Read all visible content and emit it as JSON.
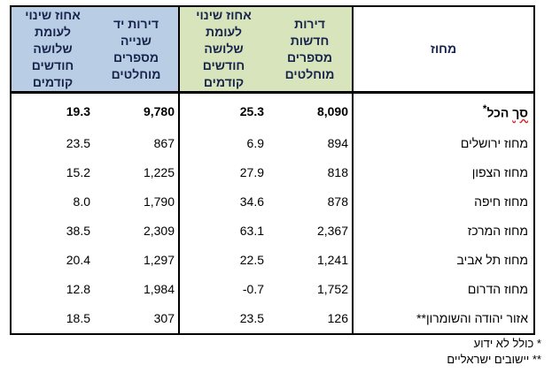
{
  "headers": {
    "district": "מחוז",
    "new_abs": [
      "דירות",
      "חדשות",
      "מספרים",
      "מוחלטים"
    ],
    "new_pct": [
      "אחוז שינוי",
      "לעומת",
      "שלושה",
      "חודשים",
      "קודמים"
    ],
    "used_abs": [
      "דירות יד",
      "שנייה",
      "מספרים",
      "מוחלטים"
    ],
    "used_pct": [
      "אחוז שינוי",
      "לעומת",
      "שלושה",
      "חודשים",
      "קודמים"
    ]
  },
  "total_row": {
    "district_word": "סך",
    "district_rest": " הכל",
    "district_star": "*",
    "new_abs": "8,090",
    "new_pct": "25.3",
    "used_abs": "9,780",
    "used_pct": "19.3"
  },
  "rows": [
    {
      "district": "מחוז ירושלים",
      "new_abs": "894",
      "new_pct": "6.9",
      "used_abs": "867",
      "used_pct": "23.5"
    },
    {
      "district": "מחוז הצפון",
      "new_abs": "818",
      "new_pct": "27.9",
      "used_abs": "1,225",
      "used_pct": "15.2"
    },
    {
      "district": "מחוז חיפה",
      "new_abs": "878",
      "new_pct": "34.6",
      "used_abs": "1,790",
      "used_pct": "8.0"
    },
    {
      "district": "מחוז המרכז",
      "new_abs": "2,367",
      "new_pct": "63.1",
      "used_abs": "2,309",
      "used_pct": "38.5"
    },
    {
      "district": "מחוז תל אביב",
      "new_abs": "1,241",
      "new_pct": "22.5",
      "used_abs": "1,297",
      "used_pct": "20.4"
    },
    {
      "district": "מחוז הדרום",
      "new_abs": "1,752",
      "new_pct": "-0.7",
      "used_abs": "1,984",
      "used_pct": "12.8"
    },
    {
      "district": "אזור יהודה והשומרון**",
      "new_abs": "126",
      "new_pct": "23.5",
      "used_abs": "307",
      "used_pct": "18.5"
    }
  ],
  "footnotes": [
    "* כולל לא ידוע",
    "** יישובים ישראליים"
  ],
  "colors": {
    "used_header_bg": "#b9cde5",
    "new_header_bg": "#d7e4bc",
    "header_text": "#17234a"
  }
}
